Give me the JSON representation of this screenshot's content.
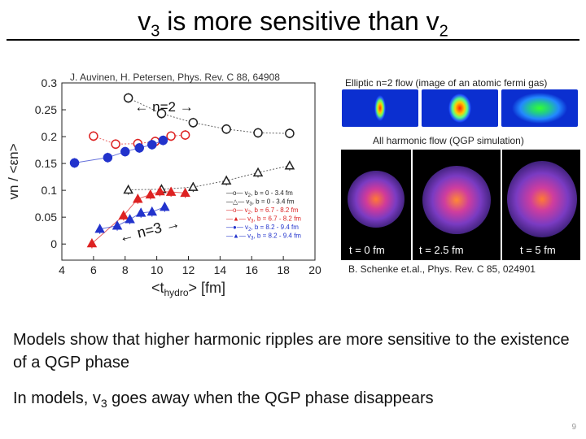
{
  "slide": {
    "title_main": "v",
    "title_sub1": "3",
    "title_mid": " is more sensitive than v",
    "title_sub2": "2",
    "left_citation": "J. Auvinen, H. Petersen, Phys. Rev. C 88, 64908",
    "elliptic_caption": "Elliptic n=2 flow (image of an atomic fermi gas)",
    "harmonic_caption": "All harmonic flow (QGP simulation)",
    "sim_times": [
      "t = 0 fm",
      "t = 2.5 fm",
      "t = 5 fm"
    ],
    "right_citation": "B. Schenke et.al., Phys. Rev. C 85, 024901",
    "bullet1": "Models show that higher harmonic ripples are more sensitive to the existence of a QGP phase",
    "bullet2_pre": "In models, v",
    "bullet2_sub": "3",
    "bullet2_post": " goes away when the QGP phase disappears",
    "page_number": "9"
  },
  "chart_data": {
    "type": "scatter",
    "xlabel_main": "<t",
    "xlabel_sub": "hydro",
    "xlabel_post": "> [fm]",
    "ylabel": "vn / <εn>",
    "xlim": [
      4,
      20
    ],
    "ylim": [
      -0.03,
      0.3
    ],
    "x_ticks": [
      4,
      6,
      8,
      10,
      12,
      14,
      16,
      18,
      20
    ],
    "y_ticks": [
      0,
      0.05,
      0.1,
      0.15,
      0.2,
      0.25,
      0.3
    ],
    "y_tick_labels": [
      "0",
      "0.05",
      "0.1",
      "0.15",
      "0.2",
      "0.25",
      "0.3"
    ],
    "annotation_n2": "← n=2 →",
    "annotation_n3": "← n=3 →",
    "series": [
      {
        "name": "v2, b = 0 - 3.4 fm",
        "color": "#222222",
        "marker": "open-circle",
        "x": [
          8.2,
          10.3,
          12.3,
          14.4,
          16.4,
          18.4
        ],
        "y": [
          0.272,
          0.243,
          0.226,
          0.214,
          0.207,
          0.206
        ]
      },
      {
        "name": "v3, b = 0 - 3.4 fm",
        "color": "#222222",
        "marker": "open-triangle",
        "x": [
          8.2,
          10.3,
          12.3,
          14.4,
          16.4,
          18.4
        ],
        "y": [
          0.101,
          0.102,
          0.106,
          0.118,
          0.133,
          0.146
        ]
      },
      {
        "name": "v2, b = 6.7 - 8.2 fm",
        "color": "#dd2222",
        "marker": "open-circle",
        "x": [
          6.0,
          7.4,
          8.8,
          9.9,
          10.9,
          11.8
        ],
        "y": [
          0.201,
          0.186,
          0.187,
          0.191,
          0.201,
          0.203
        ]
      },
      {
        "name": "v3, b = 6.7 - 8.2 fm",
        "color": "#dd2222",
        "marker": "triangle",
        "x": [
          5.9,
          7.9,
          8.8,
          9.6,
          10.2,
          10.9,
          11.8
        ],
        "y": [
          0.001,
          0.053,
          0.084,
          0.092,
          0.098,
          0.097,
          0.095
        ]
      },
      {
        "name": "v2, b = 8.2 - 9.4 fm",
        "color": "#2233cc",
        "marker": "circle",
        "x": [
          4.8,
          6.9,
          8.0,
          8.9,
          9.7,
          10.4
        ],
        "y": [
          0.151,
          0.161,
          0.172,
          0.179,
          0.185,
          0.193
        ]
      },
      {
        "name": "v3, b = 8.2 - 9.4 fm",
        "color": "#2233cc",
        "marker": "triangle",
        "x": [
          6.4,
          7.5,
          8.3,
          9.0,
          9.7,
          10.5
        ],
        "y": [
          0.028,
          0.034,
          0.046,
          0.058,
          0.06,
          0.069
        ]
      }
    ],
    "legend": [
      {
        "symbol": "—o—",
        "label": "v",
        "sub": "2",
        "rest": ", b = 0 - 3.4 fm",
        "color": "#222222"
      },
      {
        "symbol": "—△—",
        "label": "v",
        "sub": "3",
        "rest": ", b = 0 - 3.4 fm",
        "color": "#222222"
      },
      {
        "symbol": "—o—",
        "label": "v",
        "sub": "2",
        "rest": ", b = 6.7 - 8.2 fm",
        "color": "#dd2222"
      },
      {
        "symbol": "—▲—",
        "label": "v",
        "sub": "3",
        "rest": ", b = 6.7 - 8.2 fm",
        "color": "#dd2222"
      },
      {
        "symbol": "—●—",
        "label": "v",
        "sub": "2",
        "rest": ", b = 8.2 - 9.4 fm",
        "color": "#2233cc"
      },
      {
        "symbol": "—▲—",
        "label": "v",
        "sub": "3",
        "rest": ", b = 8.2 - 9.4 fm",
        "color": "#2233cc"
      }
    ],
    "legend_placement": "bottom-right"
  }
}
